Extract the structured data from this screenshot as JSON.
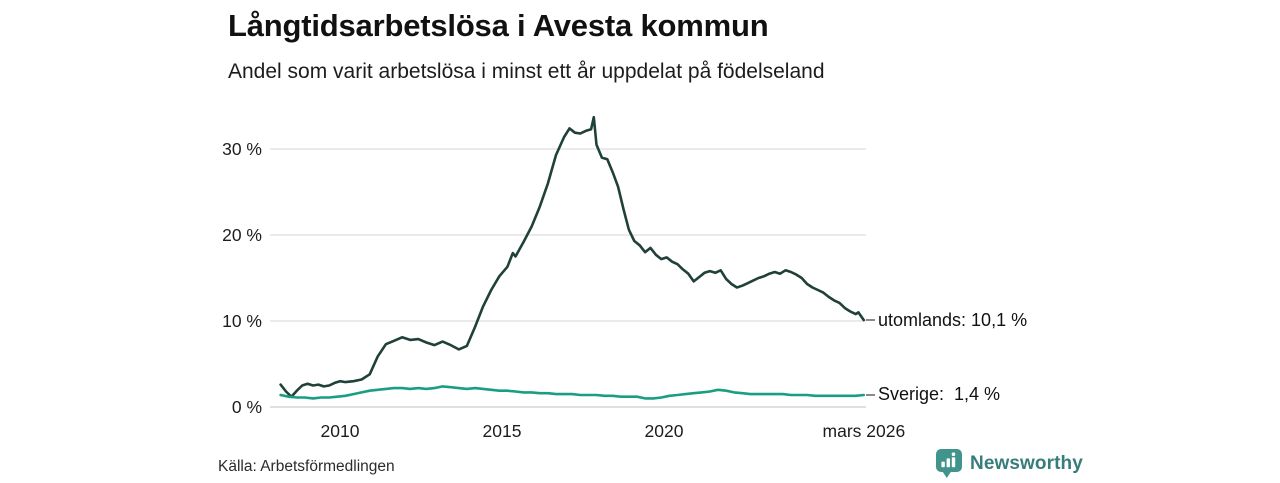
{
  "header": {
    "title": "Långtidsarbetslösa i Avesta kommun",
    "subtitle": "Andel som varit arbetslösa i minst ett år uppdelat på födelseland"
  },
  "footer": {
    "source": "Källa: Arbetsförmedlingen",
    "brand": "Newsworthy",
    "brand_text_color": "#377d79",
    "brand_icon": "pin-bar-chart-icon",
    "brand_icon_color": "#41948b"
  },
  "chart_data": {
    "type": "line",
    "title": "Långtidsarbetslösa i Avesta kommun",
    "subtitle": "Andel som varit arbetslösa i minst ett år uppdelat på födelseland",
    "xlabel": "",
    "ylabel": "",
    "unit": "%",
    "xlim": [
      "2008-03",
      "2026-03"
    ],
    "ylim": [
      0,
      34
    ],
    "grid": "horizontal-only",
    "grid_color": "#e4e4e4",
    "axis_line_color": "#d6d6d6",
    "legend_position": "end-of-line-labels",
    "yticks": [
      {
        "label": "0 %",
        "v": 0
      },
      {
        "label": "10 %",
        "v": 10
      },
      {
        "label": "20 %",
        "v": 20
      },
      {
        "label": "30 %",
        "v": 30
      }
    ],
    "xticks": [
      {
        "label": "2010",
        "t": 2010.0
      },
      {
        "label": "2015",
        "t": 2015.0
      },
      {
        "label": "2020",
        "t": 2020.0
      },
      {
        "label": "mars 2026",
        "t": 2026.17
      }
    ],
    "series": [
      {
        "id": "utomlands",
        "name": "utomlands",
        "end_label": "utomlands: 10,1 %",
        "last_value": 10.1,
        "color": "#20403a",
        "points": [
          [
            "2008-03",
            2.6
          ],
          [
            "2008-05",
            1.8
          ],
          [
            "2008-07",
            1.2
          ],
          [
            "2008-09",
            1.9
          ],
          [
            "2008-11",
            2.5
          ],
          [
            "2009-01",
            2.7
          ],
          [
            "2009-03",
            2.5
          ],
          [
            "2009-05",
            2.6
          ],
          [
            "2009-07",
            2.4
          ],
          [
            "2009-09",
            2.5
          ],
          [
            "2009-11",
            2.8
          ],
          [
            "2010-01",
            3.0
          ],
          [
            "2010-03",
            2.9
          ],
          [
            "2010-06",
            3.0
          ],
          [
            "2010-09",
            3.2
          ],
          [
            "2010-12",
            3.8
          ],
          [
            "2011-03",
            5.9
          ],
          [
            "2011-06",
            7.3
          ],
          [
            "2011-09",
            7.7
          ],
          [
            "2011-12",
            8.1
          ],
          [
            "2012-03",
            7.8
          ],
          [
            "2012-06",
            7.9
          ],
          [
            "2012-09",
            7.5
          ],
          [
            "2012-12",
            7.2
          ],
          [
            "2013-03",
            7.6
          ],
          [
            "2013-06",
            7.2
          ],
          [
            "2013-09",
            6.7
          ],
          [
            "2013-12",
            7.1
          ],
          [
            "2014-03",
            9.3
          ],
          [
            "2014-06",
            11.7
          ],
          [
            "2014-09",
            13.6
          ],
          [
            "2014-12",
            15.2
          ],
          [
            "2015-03",
            16.3
          ],
          [
            "2015-05",
            17.9
          ],
          [
            "2015-06",
            17.5
          ],
          [
            "2015-09",
            19.2
          ],
          [
            "2015-12",
            21.0
          ],
          [
            "2016-03",
            23.3
          ],
          [
            "2016-06",
            26.0
          ],
          [
            "2016-09",
            29.3
          ],
          [
            "2016-12",
            31.4
          ],
          [
            "2017-02",
            32.4
          ],
          [
            "2017-04",
            31.9
          ],
          [
            "2017-06",
            31.8
          ],
          [
            "2017-08",
            32.1
          ],
          [
            "2017-10",
            32.3
          ],
          [
            "2017-11",
            33.7
          ],
          [
            "2017-12",
            30.5
          ],
          [
            "2018-02",
            29.0
          ],
          [
            "2018-04",
            28.8
          ],
          [
            "2018-06",
            27.3
          ],
          [
            "2018-08",
            25.6
          ],
          [
            "2018-10",
            23.0
          ],
          [
            "2018-12",
            20.6
          ],
          [
            "2019-02",
            19.3
          ],
          [
            "2019-04",
            18.8
          ],
          [
            "2019-06",
            18.0
          ],
          [
            "2019-08",
            18.5
          ],
          [
            "2019-10",
            17.7
          ],
          [
            "2019-12",
            17.2
          ],
          [
            "2020-02",
            17.4
          ],
          [
            "2020-04",
            16.9
          ],
          [
            "2020-06",
            16.6
          ],
          [
            "2020-08",
            16.0
          ],
          [
            "2020-10",
            15.5
          ],
          [
            "2020-12",
            14.6
          ],
          [
            "2021-02",
            15.1
          ],
          [
            "2021-04",
            15.6
          ],
          [
            "2021-06",
            15.8
          ],
          [
            "2021-08",
            15.6
          ],
          [
            "2021-10",
            15.9
          ],
          [
            "2021-12",
            14.9
          ],
          [
            "2022-02",
            14.3
          ],
          [
            "2022-04",
            13.9
          ],
          [
            "2022-06",
            14.1
          ],
          [
            "2022-08",
            14.4
          ],
          [
            "2022-10",
            14.7
          ],
          [
            "2022-12",
            15.0
          ],
          [
            "2023-02",
            15.2
          ],
          [
            "2023-04",
            15.5
          ],
          [
            "2023-06",
            15.7
          ],
          [
            "2023-08",
            15.5
          ],
          [
            "2023-10",
            15.9
          ],
          [
            "2023-12",
            15.7
          ],
          [
            "2024-02",
            15.4
          ],
          [
            "2024-04",
            15.0
          ],
          [
            "2024-06",
            14.3
          ],
          [
            "2024-08",
            13.9
          ],
          [
            "2024-10",
            13.6
          ],
          [
            "2024-12",
            13.3
          ],
          [
            "2025-02",
            12.8
          ],
          [
            "2025-04",
            12.4
          ],
          [
            "2025-06",
            12.1
          ],
          [
            "2025-08",
            11.5
          ],
          [
            "2025-10",
            11.1
          ],
          [
            "2025-12",
            10.8
          ],
          [
            "2026-01",
            11.0
          ],
          [
            "2026-03",
            10.1
          ]
        ]
      },
      {
        "id": "sverige",
        "name": "Sverige",
        "end_label": "Sverige:  1,4 %",
        "last_value": 1.4,
        "color": "#1a9e83",
        "points": [
          [
            "2008-03",
            1.4
          ],
          [
            "2008-06",
            1.2
          ],
          [
            "2008-09",
            1.1
          ],
          [
            "2008-12",
            1.1
          ],
          [
            "2009-03",
            1.0
          ],
          [
            "2009-06",
            1.1
          ],
          [
            "2009-09",
            1.1
          ],
          [
            "2009-12",
            1.2
          ],
          [
            "2010-03",
            1.3
          ],
          [
            "2010-06",
            1.5
          ],
          [
            "2010-09",
            1.7
          ],
          [
            "2010-12",
            1.9
          ],
          [
            "2011-03",
            2.0
          ],
          [
            "2011-06",
            2.1
          ],
          [
            "2011-09",
            2.2
          ],
          [
            "2011-12",
            2.2
          ],
          [
            "2012-03",
            2.1
          ],
          [
            "2012-06",
            2.2
          ],
          [
            "2012-09",
            2.1
          ],
          [
            "2012-12",
            2.2
          ],
          [
            "2013-03",
            2.4
          ],
          [
            "2013-06",
            2.3
          ],
          [
            "2013-09",
            2.2
          ],
          [
            "2013-12",
            2.1
          ],
          [
            "2014-03",
            2.2
          ],
          [
            "2014-06",
            2.1
          ],
          [
            "2014-09",
            2.0
          ],
          [
            "2014-12",
            1.9
          ],
          [
            "2015-03",
            1.9
          ],
          [
            "2015-06",
            1.8
          ],
          [
            "2015-09",
            1.7
          ],
          [
            "2015-12",
            1.7
          ],
          [
            "2016-03",
            1.6
          ],
          [
            "2016-06",
            1.6
          ],
          [
            "2016-09",
            1.5
          ],
          [
            "2016-12",
            1.5
          ],
          [
            "2017-03",
            1.5
          ],
          [
            "2017-06",
            1.4
          ],
          [
            "2017-09",
            1.4
          ],
          [
            "2017-12",
            1.4
          ],
          [
            "2018-03",
            1.3
          ],
          [
            "2018-06",
            1.3
          ],
          [
            "2018-09",
            1.2
          ],
          [
            "2018-12",
            1.2
          ],
          [
            "2019-03",
            1.2
          ],
          [
            "2019-06",
            1.0
          ],
          [
            "2019-09",
            1.0
          ],
          [
            "2019-12",
            1.1
          ],
          [
            "2020-03",
            1.3
          ],
          [
            "2020-06",
            1.4
          ],
          [
            "2020-09",
            1.5
          ],
          [
            "2020-12",
            1.6
          ],
          [
            "2021-03",
            1.7
          ],
          [
            "2021-06",
            1.8
          ],
          [
            "2021-09",
            2.0
          ],
          [
            "2021-12",
            1.9
          ],
          [
            "2022-03",
            1.7
          ],
          [
            "2022-06",
            1.6
          ],
          [
            "2022-09",
            1.5
          ],
          [
            "2022-12",
            1.5
          ],
          [
            "2023-03",
            1.5
          ],
          [
            "2023-06",
            1.5
          ],
          [
            "2023-09",
            1.5
          ],
          [
            "2023-12",
            1.4
          ],
          [
            "2024-03",
            1.4
          ],
          [
            "2024-06",
            1.4
          ],
          [
            "2024-09",
            1.3
          ],
          [
            "2024-12",
            1.3
          ],
          [
            "2025-03",
            1.3
          ],
          [
            "2025-06",
            1.3
          ],
          [
            "2025-09",
            1.3
          ],
          [
            "2025-12",
            1.3
          ],
          [
            "2026-03",
            1.4
          ]
        ]
      }
    ]
  }
}
